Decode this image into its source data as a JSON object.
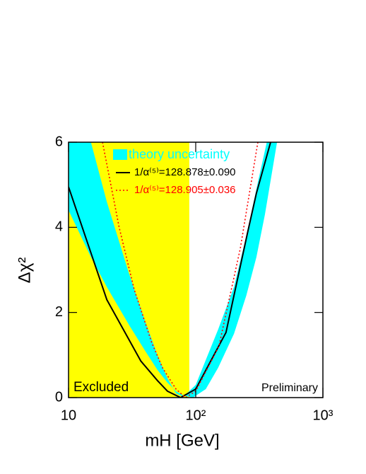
{
  "chart_data": {
    "type": "line",
    "xlabel": "mH [GeV]",
    "ylabel": "Δχ²",
    "xscale": "log",
    "xlim": [
      10,
      1000
    ],
    "xticks": [
      10,
      {
        "value": 100,
        "label": "10²"
      },
      {
        "value": 1000,
        "label": "10³"
      }
    ],
    "ylim": [
      0,
      6
    ],
    "yticks": [
      0,
      2,
      4,
      6
    ],
    "excluded": {
      "label": "Excluded",
      "xmax": 89,
      "color": "#ffff00"
    },
    "annotation": "Preliminary",
    "band": {
      "name": "theory uncertainty",
      "color": "#00ffff",
      "upper": {
        "x": [
          10,
          15,
          20,
          30,
          40,
          50,
          60,
          70,
          80,
          100,
          150,
          200,
          250,
          300,
          362
        ],
        "values": [
          6,
          6,
          4.6,
          2.9,
          1.8,
          1.0,
          0.45,
          0.1,
          0.02,
          0.3,
          1.6,
          2.6,
          3.8,
          4.9,
          6
        ]
      },
      "lower": {
        "x": [
          10,
          15,
          20,
          30,
          40,
          50,
          60,
          70,
          80,
          95,
          120,
          150,
          200,
          250,
          300,
          350,
          436
        ],
        "values": [
          4.4,
          3.3,
          2.6,
          1.7,
          1.1,
          0.65,
          0.35,
          0.15,
          0.05,
          0,
          0.2,
          0.7,
          1.5,
          2.4,
          3.3,
          4.3,
          6
        ]
      }
    },
    "series": [
      {
        "name": "1/α⁽⁵⁾=128.878±0.090",
        "color": "#000000",
        "dash": false,
        "x": [
          10,
          20,
          37,
          50,
          60,
          76,
          100,
          173,
          255,
          300,
          388
        ],
        "values": [
          4.95,
          2.3,
          0.86,
          0.4,
          0.15,
          0,
          0.2,
          1.53,
          3.86,
          4.8,
          6
        ]
      },
      {
        "name": "1/α⁽⁵⁾=128.905±0.036",
        "color": "#ff0000",
        "dash": true,
        "x": [
          18.5,
          25,
          32.9,
          45,
          54.8,
          70,
          83,
          100,
          152,
          224,
          308
        ],
        "values": [
          6,
          4.0,
          2.53,
          1.3,
          0.7,
          0.2,
          0,
          0.15,
          1.2,
          3.5,
          6
        ]
      }
    ]
  }
}
